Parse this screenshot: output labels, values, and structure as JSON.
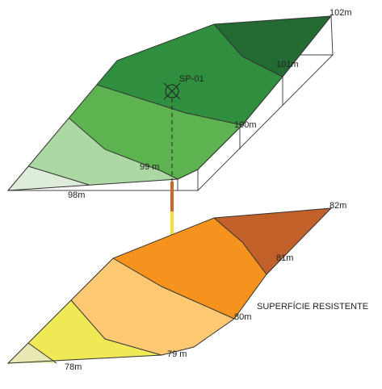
{
  "upper_surface": {
    "contours": [
      "98m",
      "99 m",
      "100m",
      "101m",
      "102m"
    ]
  },
  "borehole": {
    "label": "SP-01"
  },
  "lower_surface": {
    "name": "SUPERFÍCIE RESISTENTE",
    "contours": [
      "78m",
      "79 m",
      "80m",
      "81m",
      "82m"
    ]
  }
}
